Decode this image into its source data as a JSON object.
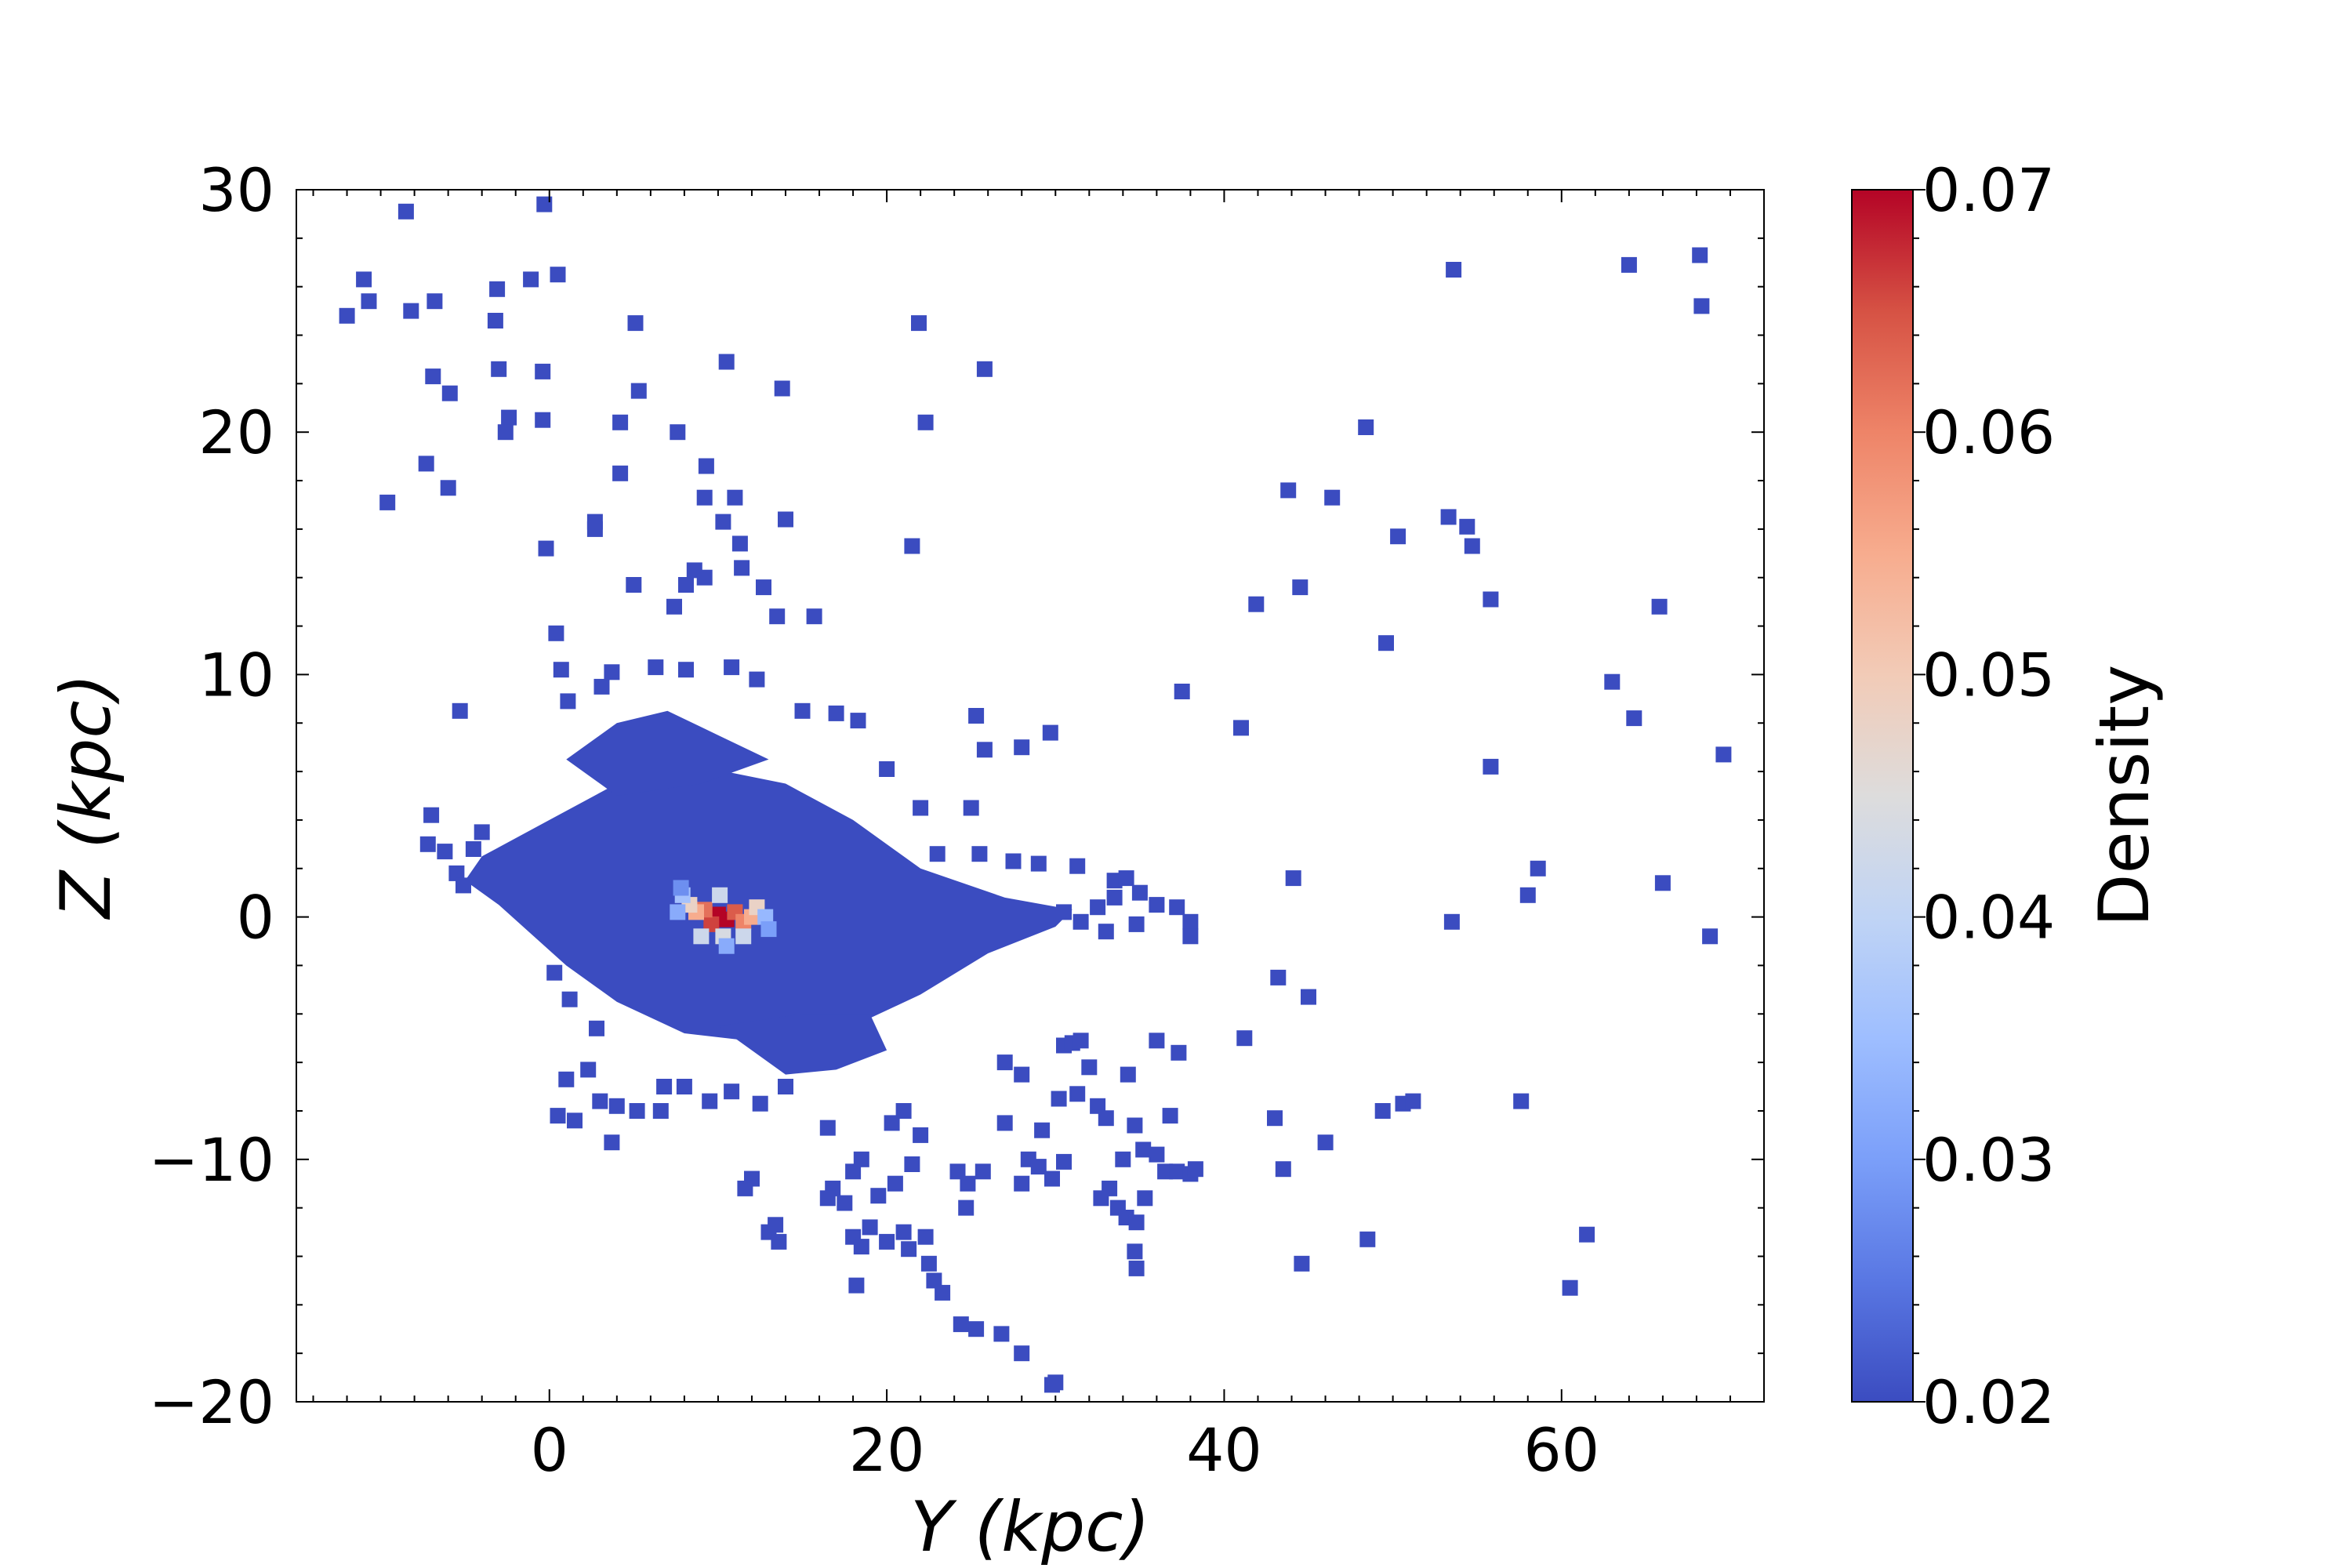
{
  "chart_data": {
    "type": "scatter",
    "title": "",
    "xlabel": "Y (kpc)",
    "ylabel": "Z (kpc)",
    "xlim": [
      -15,
      72
    ],
    "ylim": [
      -20,
      30
    ],
    "xticks": [
      {
        "value": 0,
        "label": "0"
      },
      {
        "value": 20,
        "label": "20"
      },
      {
        "value": 40,
        "label": "40"
      },
      {
        "value": 60,
        "label": "60"
      }
    ],
    "yticks": [
      {
        "value": -20,
        "label": "−20"
      },
      {
        "value": -10,
        "label": "−10"
      },
      {
        "value": 0,
        "label": "0"
      },
      {
        "value": 10,
        "label": "10"
      },
      {
        "value": 20,
        "label": "20"
      },
      {
        "value": 30,
        "label": "30"
      }
    ],
    "grid": false,
    "marker": "square",
    "colorbar": {
      "label": "Density",
      "colormap": "coolwarm",
      "range": [
        0.02,
        0.07
      ],
      "ticks": [
        {
          "value": 0.02,
          "label": "0.02"
        },
        {
          "value": 0.03,
          "label": "0.03"
        },
        {
          "value": 0.04,
          "label": "0.04"
        },
        {
          "value": 0.05,
          "label": "0.05"
        },
        {
          "value": 0.06,
          "label": "0.06"
        },
        {
          "value": 0.07,
          "label": "0.07"
        }
      ],
      "color_stops": [
        "#3b4cc0",
        "#5977e3",
        "#7b9ff9",
        "#9ebeff",
        "#c0d4f5",
        "#dddcdc",
        "#f2cbb7",
        "#f7ac8e",
        "#ee8468",
        "#d65244",
        "#b40426"
      ]
    },
    "points": [
      {
        "x": -12,
        "y": 24.8,
        "d": 0.02
      },
      {
        "x": -11,
        "y": 26.3,
        "d": 0.02
      },
      {
        "x": -10.7,
        "y": 25.4,
        "d": 0.02
      },
      {
        "x": -8.5,
        "y": 29.1,
        "d": 0.02
      },
      {
        "x": -8.2,
        "y": 25.0,
        "d": 0.02
      },
      {
        "x": -6.8,
        "y": 25.4,
        "d": 0.02
      },
      {
        "x": -7.3,
        "y": 18.7,
        "d": 0.02
      },
      {
        "x": -6.9,
        "y": 22.3,
        "d": 0.02
      },
      {
        "x": -5.9,
        "y": 21.6,
        "d": 0.02
      },
      {
        "x": -6.0,
        "y": 17.7,
        "d": 0.02
      },
      {
        "x": -9.6,
        "y": 17.1,
        "d": 0.02
      },
      {
        "x": -3.1,
        "y": 25.9,
        "d": 0.02
      },
      {
        "x": -3.0,
        "y": 22.6,
        "d": 0.02
      },
      {
        "x": -3.2,
        "y": 24.6,
        "d": 0.02
      },
      {
        "x": -2.4,
        "y": 20.6,
        "d": 0.02
      },
      {
        "x": -2.6,
        "y": 20.0,
        "d": 0.02
      },
      {
        "x": -1.1,
        "y": 26.3,
        "d": 0.02
      },
      {
        "x": -0.3,
        "y": 29.4,
        "d": 0.02
      },
      {
        "x": -0.4,
        "y": 22.5,
        "d": 0.02
      },
      {
        "x": -0.4,
        "y": 20.5,
        "d": 0.02
      },
      {
        "x": -0.2,
        "y": 15.2,
        "d": 0.02
      },
      {
        "x": 0.4,
        "y": 11.7,
        "d": 0.02
      },
      {
        "x": 0.7,
        "y": 10.2,
        "d": 0.02
      },
      {
        "x": 0.5,
        "y": 26.5,
        "d": 0.02
      },
      {
        "x": 2.7,
        "y": 16.3,
        "d": 0.02
      },
      {
        "x": 2.7,
        "y": 16.0,
        "d": 0.02
      },
      {
        "x": 4.2,
        "y": 20.4,
        "d": 0.02
      },
      {
        "x": 4.2,
        "y": 18.3,
        "d": 0.02
      },
      {
        "x": 5.0,
        "y": 13.7,
        "d": 0.02
      },
      {
        "x": 5.3,
        "y": 21.7,
        "d": 0.02
      },
      {
        "x": 5.1,
        "y": 24.5,
        "d": 0.02
      },
      {
        "x": 7.4,
        "y": 12.8,
        "d": 0.02
      },
      {
        "x": 7.6,
        "y": 20.0,
        "d": 0.02
      },
      {
        "x": 8.1,
        "y": 13.7,
        "d": 0.02
      },
      {
        "x": 8.6,
        "y": 14.3,
        "d": 0.02
      },
      {
        "x": 9.3,
        "y": 18.6,
        "d": 0.02
      },
      {
        "x": 9.2,
        "y": 17.3,
        "d": 0.02
      },
      {
        "x": 9.2,
        "y": 14.0,
        "d": 0.02
      },
      {
        "x": 10.3,
        "y": 16.3,
        "d": 0.02
      },
      {
        "x": 10.5,
        "y": 22.9,
        "d": 0.02
      },
      {
        "x": 11.0,
        "y": 17.3,
        "d": 0.02
      },
      {
        "x": 11.3,
        "y": 15.4,
        "d": 0.02
      },
      {
        "x": 11.4,
        "y": 14.4,
        "d": 0.02
      },
      {
        "x": 12.7,
        "y": 13.6,
        "d": 0.02
      },
      {
        "x": 13.5,
        "y": 12.4,
        "d": 0.02
      },
      {
        "x": 14.0,
        "y": 16.4,
        "d": 0.02
      },
      {
        "x": 13.8,
        "y": 21.8,
        "d": 0.02
      },
      {
        "x": 15.7,
        "y": 12.4,
        "d": 0.02
      },
      {
        "x": 21.9,
        "y": 24.5,
        "d": 0.02
      },
      {
        "x": 22.3,
        "y": 20.4,
        "d": 0.02
      },
      {
        "x": 21.5,
        "y": 15.3,
        "d": 0.02
      },
      {
        "x": 25.8,
        "y": 22.6,
        "d": 0.02
      },
      {
        "x": -5.3,
        "y": 8.5,
        "d": 0.02
      },
      {
        "x": 1.1,
        "y": 8.9,
        "d": 0.02
      },
      {
        "x": 3.1,
        "y": 9.5,
        "d": 0.02
      },
      {
        "x": 3.7,
        "y": 10.1,
        "d": 0.02
      },
      {
        "x": 6.3,
        "y": 10.3,
        "d": 0.02
      },
      {
        "x": 8.1,
        "y": 10.2,
        "d": 0.02
      },
      {
        "x": 10.8,
        "y": 10.3,
        "d": 0.02
      },
      {
        "x": 12.3,
        "y": 9.8,
        "d": 0.02
      },
      {
        "x": 15.0,
        "y": 8.5,
        "d": 0.02
      },
      {
        "x": 17.0,
        "y": 8.4,
        "d": 0.02
      },
      {
        "x": 18.3,
        "y": 8.1,
        "d": 0.02
      },
      {
        "x": 25.3,
        "y": 8.3,
        "d": 0.02
      },
      {
        "x": 25.8,
        "y": 6.9,
        "d": 0.02
      },
      {
        "x": 28.0,
        "y": 7.0,
        "d": 0.02
      },
      {
        "x": 29.7,
        "y": 7.6,
        "d": 0.02
      },
      {
        "x": 20.0,
        "y": 6.1,
        "d": 0.02
      },
      {
        "x": 22.0,
        "y": 4.5,
        "d": 0.02
      },
      {
        "x": 25.0,
        "y": 4.5,
        "d": 0.02
      },
      {
        "x": -7.0,
        "y": 4.2,
        "d": 0.02
      },
      {
        "x": -7.2,
        "y": 3.0,
        "d": 0.02
      },
      {
        "x": -6.2,
        "y": 2.7,
        "d": 0.02
      },
      {
        "x": -4.5,
        "y": 2.8,
        "d": 0.02
      },
      {
        "x": -5.5,
        "y": 1.8,
        "d": 0.02
      },
      {
        "x": -5.1,
        "y": 1.3,
        "d": 0.02
      },
      {
        "x": -4.0,
        "y": 3.5,
        "d": 0.02
      },
      {
        "x": 23.0,
        "y": 2.6,
        "d": 0.02
      },
      {
        "x": 25.5,
        "y": 2.6,
        "d": 0.02
      },
      {
        "x": 27.5,
        "y": 2.3,
        "d": 0.02
      },
      {
        "x": 29.0,
        "y": 2.2,
        "d": 0.02
      },
      {
        "x": 31.3,
        "y": 2.1,
        "d": 0.02
      },
      {
        "x": 33.5,
        "y": 1.5,
        "d": 0.02
      },
      {
        "x": 34.2,
        "y": 1.6,
        "d": 0.02
      },
      {
        "x": 35.0,
        "y": 1.0,
        "d": 0.02
      },
      {
        "x": 36.0,
        "y": 0.5,
        "d": 0.02
      },
      {
        "x": 37.2,
        "y": 0.4,
        "d": 0.02
      },
      {
        "x": 38.0,
        "y": -0.2,
        "d": 0.02
      },
      {
        "x": 38.0,
        "y": -0.8,
        "d": 0.02
      },
      {
        "x": 33.0,
        "y": -0.6,
        "d": 0.02
      },
      {
        "x": 33.5,
        "y": 0.8,
        "d": 0.02
      },
      {
        "x": 32.5,
        "y": 0.4,
        "d": 0.02
      },
      {
        "x": 31.5,
        "y": -0.2,
        "d": 0.02
      },
      {
        "x": 34.8,
        "y": -0.3,
        "d": 0.02
      },
      {
        "x": 30.5,
        "y": 0.2,
        "d": 0.02
      },
      {
        "x": 0.3,
        "y": -2.3,
        "d": 0.02
      },
      {
        "x": 1.2,
        "y": -3.4,
        "d": 0.02
      },
      {
        "x": 2.8,
        "y": -4.6,
        "d": 0.02
      },
      {
        "x": 1.0,
        "y": -6.7,
        "d": 0.02
      },
      {
        "x": 2.3,
        "y": -6.3,
        "d": 0.02
      },
      {
        "x": 0.5,
        "y": -8.2,
        "d": 0.02
      },
      {
        "x": 1.5,
        "y": -8.4,
        "d": 0.02
      },
      {
        "x": 3.0,
        "y": -7.6,
        "d": 0.02
      },
      {
        "x": 4.0,
        "y": -7.8,
        "d": 0.02
      },
      {
        "x": 3.7,
        "y": -9.3,
        "d": 0.02
      },
      {
        "x": 5.2,
        "y": -8.0,
        "d": 0.02
      },
      {
        "x": 6.6,
        "y": -8.0,
        "d": 0.02
      },
      {
        "x": 6.8,
        "y": -7.0,
        "d": 0.02
      },
      {
        "x": 8.0,
        "y": -7.0,
        "d": 0.02
      },
      {
        "x": 9.5,
        "y": -7.6,
        "d": 0.02
      },
      {
        "x": 10.8,
        "y": -7.2,
        "d": 0.02
      },
      {
        "x": 12.5,
        "y": -7.7,
        "d": 0.02
      },
      {
        "x": 14.0,
        "y": -7.0,
        "d": 0.02
      },
      {
        "x": 16.5,
        "y": -8.7,
        "d": 0.02
      },
      {
        "x": 18.0,
        "y": -10.5,
        "d": 0.02
      },
      {
        "x": 18.5,
        "y": -10.0,
        "d": 0.02
      },
      {
        "x": 16.8,
        "y": -11.2,
        "d": 0.02
      },
      {
        "x": 16.5,
        "y": -11.6,
        "d": 0.02
      },
      {
        "x": 17.5,
        "y": -11.8,
        "d": 0.02
      },
      {
        "x": 19.5,
        "y": -11.5,
        "d": 0.02
      },
      {
        "x": 19.0,
        "y": -12.8,
        "d": 0.02
      },
      {
        "x": 18.0,
        "y": -13.2,
        "d": 0.02
      },
      {
        "x": 18.5,
        "y": -13.6,
        "d": 0.02
      },
      {
        "x": 18.2,
        "y": -15.2,
        "d": 0.02
      },
      {
        "x": 20.0,
        "y": -13.4,
        "d": 0.02
      },
      {
        "x": 21.0,
        "y": -13.0,
        "d": 0.02
      },
      {
        "x": 21.3,
        "y": -13.7,
        "d": 0.02
      },
      {
        "x": 22.3,
        "y": -13.2,
        "d": 0.02
      },
      {
        "x": 22.5,
        "y": -14.3,
        "d": 0.02
      },
      {
        "x": 22.8,
        "y": -15.0,
        "d": 0.02
      },
      {
        "x": 23.3,
        "y": -15.5,
        "d": 0.02
      },
      {
        "x": 20.5,
        "y": -11.0,
        "d": 0.02
      },
      {
        "x": 21.5,
        "y": -10.2,
        "d": 0.02
      },
      {
        "x": 22.0,
        "y": -9.0,
        "d": 0.02
      },
      {
        "x": 21.0,
        "y": -8.0,
        "d": 0.02
      },
      {
        "x": 20.3,
        "y": -8.5,
        "d": 0.02
      },
      {
        "x": 12.0,
        "y": -10.8,
        "d": 0.02
      },
      {
        "x": 11.6,
        "y": -11.2,
        "d": 0.02
      },
      {
        "x": 13.0,
        "y": -13.0,
        "d": 0.02
      },
      {
        "x": 13.4,
        "y": -12.7,
        "d": 0.02
      },
      {
        "x": 13.6,
        "y": -13.4,
        "d": 0.02
      },
      {
        "x": 24.2,
        "y": -10.5,
        "d": 0.02
      },
      {
        "x": 24.8,
        "y": -11.0,
        "d": 0.02
      },
      {
        "x": 24.7,
        "y": -12.0,
        "d": 0.02
      },
      {
        "x": 24.4,
        "y": -16.8,
        "d": 0.02
      },
      {
        "x": 25.3,
        "y": -17.0,
        "d": 0.02
      },
      {
        "x": 26.8,
        "y": -17.2,
        "d": 0.02
      },
      {
        "x": 28.0,
        "y": -18.0,
        "d": 0.02
      },
      {
        "x": 29.8,
        "y": -19.3,
        "d": 0.02
      },
      {
        "x": 30.0,
        "y": -19.2,
        "d": 0.02
      },
      {
        "x": 25.7,
        "y": -10.5,
        "d": 0.02
      },
      {
        "x": 27.0,
        "y": -8.5,
        "d": 0.02
      },
      {
        "x": 28.4,
        "y": -10.0,
        "d": 0.02
      },
      {
        "x": 29.0,
        "y": -10.3,
        "d": 0.02
      },
      {
        "x": 29.8,
        "y": -10.8,
        "d": 0.02
      },
      {
        "x": 28.0,
        "y": -11.0,
        "d": 0.02
      },
      {
        "x": 30.5,
        "y": -10.1,
        "d": 0.02
      },
      {
        "x": 29.2,
        "y": -8.8,
        "d": 0.02
      },
      {
        "x": 27.0,
        "y": -6.0,
        "d": 0.02
      },
      {
        "x": 28.0,
        "y": -6.5,
        "d": 0.02
      },
      {
        "x": 30.5,
        "y": -5.3,
        "d": 0.02
      },
      {
        "x": 31.0,
        "y": -5.2,
        "d": 0.02
      },
      {
        "x": 31.5,
        "y": -5.1,
        "d": 0.02
      },
      {
        "x": 32.0,
        "y": -6.2,
        "d": 0.02
      },
      {
        "x": 30.2,
        "y": -7.5,
        "d": 0.02
      },
      {
        "x": 31.3,
        "y": -7.3,
        "d": 0.02
      },
      {
        "x": 32.5,
        "y": -7.8,
        "d": 0.02
      },
      {
        "x": 33.0,
        "y": -8.3,
        "d": 0.02
      },
      {
        "x": 34.3,
        "y": -6.5,
        "d": 0.02
      },
      {
        "x": 34.7,
        "y": -8.6,
        "d": 0.02
      },
      {
        "x": 34.0,
        "y": -10.0,
        "d": 0.02
      },
      {
        "x": 32.7,
        "y": -11.6,
        "d": 0.02
      },
      {
        "x": 33.2,
        "y": -11.2,
        "d": 0.02
      },
      {
        "x": 33.7,
        "y": -12.0,
        "d": 0.02
      },
      {
        "x": 34.2,
        "y": -12.4,
        "d": 0.02
      },
      {
        "x": 34.8,
        "y": -12.6,
        "d": 0.02
      },
      {
        "x": 35.3,
        "y": -11.6,
        "d": 0.02
      },
      {
        "x": 34.7,
        "y": -13.8,
        "d": 0.02
      },
      {
        "x": 34.8,
        "y": -14.5,
        "d": 0.02
      },
      {
        "x": 35.2,
        "y": -9.6,
        "d": 0.02
      },
      {
        "x": 36.0,
        "y": -9.8,
        "d": 0.02
      },
      {
        "x": 36.5,
        "y": -10.5,
        "d": 0.02
      },
      {
        "x": 37.2,
        "y": -10.5,
        "d": 0.02
      },
      {
        "x": 38.0,
        "y": -10.6,
        "d": 0.02
      },
      {
        "x": 38.3,
        "y": -10.4,
        "d": 0.02
      },
      {
        "x": 36.8,
        "y": -8.2,
        "d": 0.02
      },
      {
        "x": 36.0,
        "y": -5.1,
        "d": 0.02
      },
      {
        "x": 37.3,
        "y": -5.6,
        "d": 0.02
      },
      {
        "x": 37.5,
        "y": 9.3,
        "d": 0.02
      },
      {
        "x": 41.0,
        "y": 7.8,
        "d": 0.02
      },
      {
        "x": 41.9,
        "y": 12.9,
        "d": 0.02
      },
      {
        "x": 43.8,
        "y": 17.6,
        "d": 0.02
      },
      {
        "x": 44.5,
        "y": 13.6,
        "d": 0.02
      },
      {
        "x": 46.4,
        "y": 17.3,
        "d": 0.02
      },
      {
        "x": 48.4,
        "y": 20.2,
        "d": 0.02
      },
      {
        "x": 49.6,
        "y": 11.3,
        "d": 0.02
      },
      {
        "x": 50.3,
        "y": 15.7,
        "d": 0.02
      },
      {
        "x": 53.6,
        "y": 26.7,
        "d": 0.02
      },
      {
        "x": 53.3,
        "y": 16.5,
        "d": 0.02
      },
      {
        "x": 54.4,
        "y": 16.1,
        "d": 0.02
      },
      {
        "x": 54.7,
        "y": 15.3,
        "d": 0.02
      },
      {
        "x": 55.8,
        "y": 13.1,
        "d": 0.02
      },
      {
        "x": 55.8,
        "y": 6.2,
        "d": 0.02
      },
      {
        "x": 44.1,
        "y": 1.6,
        "d": 0.02
      },
      {
        "x": 53.5,
        "y": -0.2,
        "d": 0.02
      },
      {
        "x": 58.6,
        "y": 2.0,
        "d": 0.02
      },
      {
        "x": 58.0,
        "y": 0.9,
        "d": 0.02
      },
      {
        "x": 43.2,
        "y": -2.5,
        "d": 0.02
      },
      {
        "x": 45.0,
        "y": -3.3,
        "d": 0.02
      },
      {
        "x": 41.2,
        "y": -5.0,
        "d": 0.02
      },
      {
        "x": 43.0,
        "y": -8.3,
        "d": 0.02
      },
      {
        "x": 43.5,
        "y": -10.4,
        "d": 0.02
      },
      {
        "x": 44.6,
        "y": -14.3,
        "d": 0.02
      },
      {
        "x": 46.0,
        "y": -9.3,
        "d": 0.02
      },
      {
        "x": 48.5,
        "y": -13.3,
        "d": 0.02
      },
      {
        "x": 49.4,
        "y": -8.0,
        "d": 0.02
      },
      {
        "x": 50.6,
        "y": -7.7,
        "d": 0.02
      },
      {
        "x": 51.2,
        "y": -7.6,
        "d": 0.02
      },
      {
        "x": 57.6,
        "y": -7.6,
        "d": 0.02
      },
      {
        "x": 60.5,
        "y": -15.3,
        "d": 0.02
      },
      {
        "x": 61.5,
        "y": -13.1,
        "d": 0.02
      },
      {
        "x": 63.0,
        "y": 9.7,
        "d": 0.02
      },
      {
        "x": 64.0,
        "y": 26.9,
        "d": 0.02
      },
      {
        "x": 64.3,
        "y": 8.2,
        "d": 0.02
      },
      {
        "x": 65.8,
        "y": 12.8,
        "d": 0.02
      },
      {
        "x": 66.0,
        "y": 1.4,
        "d": 0.02
      },
      {
        "x": 68.2,
        "y": 27.3,
        "d": 0.02
      },
      {
        "x": 68.3,
        "y": 25.2,
        "d": 0.02
      },
      {
        "x": 68.8,
        "y": -0.8,
        "d": 0.02
      },
      {
        "x": 69.6,
        "y": 6.7,
        "d": 0.02
      },
      {
        "x": 10.0,
        "y": 0.1,
        "d": 0.07
      },
      {
        "x": 10.5,
        "y": -0.1,
        "d": 0.07
      },
      {
        "x": 9.6,
        "y": -0.3,
        "d": 0.066
      },
      {
        "x": 11.0,
        "y": 0.2,
        "d": 0.064
      },
      {
        "x": 9.2,
        "y": 0.3,
        "d": 0.062
      },
      {
        "x": 11.5,
        "y": -0.2,
        "d": 0.06
      },
      {
        "x": 8.7,
        "y": 0.2,
        "d": 0.055
      },
      {
        "x": 12.0,
        "y": 0.0,
        "d": 0.055
      },
      {
        "x": 8.3,
        "y": 0.5,
        "d": 0.048
      },
      {
        "x": 12.3,
        "y": 0.4,
        "d": 0.048
      },
      {
        "x": 10.3,
        "y": -0.8,
        "d": 0.044
      },
      {
        "x": 9.0,
        "y": -0.8,
        "d": 0.042
      },
      {
        "x": 11.5,
        "y": -0.8,
        "d": 0.042
      },
      {
        "x": 10.1,
        "y": 0.9,
        "d": 0.042
      },
      {
        "x": 7.9,
        "y": 0.9,
        "d": 0.036
      },
      {
        "x": 12.8,
        "y": 0.0,
        "d": 0.034
      },
      {
        "x": 7.6,
        "y": 0.2,
        "d": 0.032
      },
      {
        "x": 10.5,
        "y": -1.2,
        "d": 0.032
      },
      {
        "x": 13.0,
        "y": -0.5,
        "d": 0.03
      },
      {
        "x": 7.8,
        "y": 1.2,
        "d": 0.028
      }
    ]
  }
}
